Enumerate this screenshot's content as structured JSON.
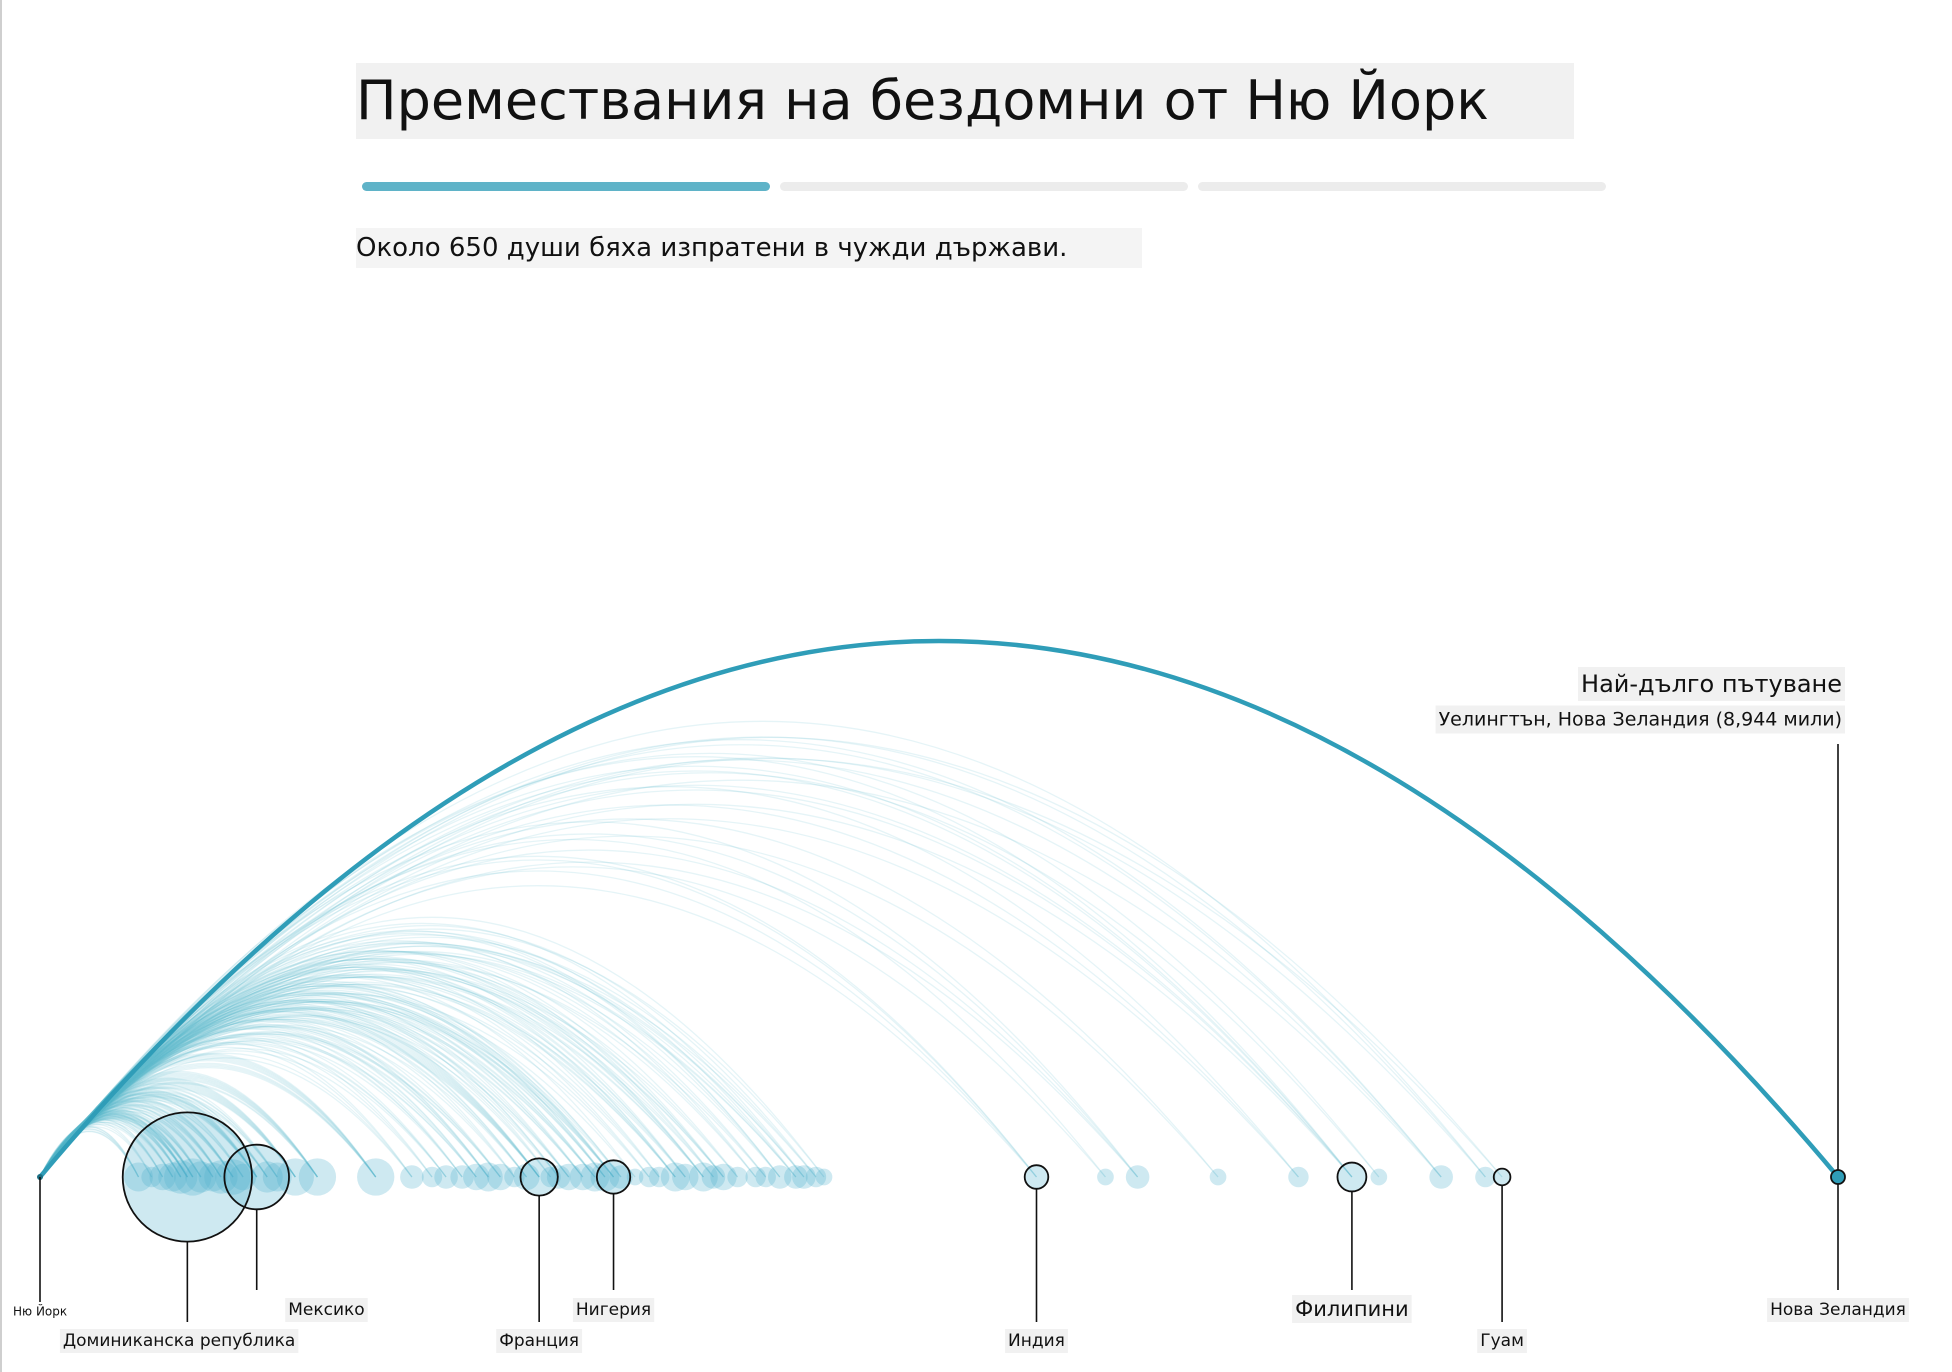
{
  "header": {
    "title": "Премествания на бездомни от Ню Йорк",
    "subtitle": "Около 650 души бяха изпратени в чужди държави.",
    "steps": [
      {
        "state": "active"
      },
      {
        "state": "inactive"
      },
      {
        "state": "inactive"
      }
    ]
  },
  "chart_data": {
    "type": "arc",
    "origin": {
      "name": "Ню Йорк",
      "distance": 0
    },
    "xlim": [
      0,
      8944
    ],
    "highlight": {
      "heading": "Най-дълго пътуване",
      "detail": "Уелингтън, Нова Зеландия (8,944 мили)",
      "distance": 8944
    },
    "labeled_destinations": [
      {
        "name": "Доминиканска република",
        "distance": 733,
        "count": 120,
        "row": "lower"
      },
      {
        "name": "Мексико",
        "distance": 1078,
        "count": 30,
        "row": "upper"
      },
      {
        "name": "Франция",
        "distance": 2483,
        "count": 10,
        "row": "lower"
      },
      {
        "name": "Нигерия",
        "distance": 2853,
        "count": 8,
        "row": "upper"
      },
      {
        "name": "Индия",
        "distance": 4957,
        "count": 4,
        "row": "lower"
      },
      {
        "name": "Филипини",
        "distance": 6526,
        "count": 6,
        "row": "upper"
      },
      {
        "name": "Гуам",
        "distance": 7273,
        "count": 2,
        "row": "lower"
      },
      {
        "name": "Нова Зеландия",
        "distance": 8944,
        "count": 1,
        "row": "upper"
      }
    ],
    "other_destinations": [
      {
        "distance": 490,
        "count": 6
      },
      {
        "distance": 555,
        "count": 3
      },
      {
        "distance": 610,
        "count": 5
      },
      {
        "distance": 660,
        "count": 6
      },
      {
        "distance": 700,
        "count": 8
      },
      {
        "distance": 760,
        "count": 10
      },
      {
        "distance": 800,
        "count": 7
      },
      {
        "distance": 860,
        "count": 6
      },
      {
        "distance": 900,
        "count": 8
      },
      {
        "distance": 960,
        "count": 9
      },
      {
        "distance": 1010,
        "count": 5
      },
      {
        "distance": 1130,
        "count": 7
      },
      {
        "distance": 1180,
        "count": 6
      },
      {
        "distance": 1270,
        "count": 10
      },
      {
        "distance": 1380,
        "count": 10
      },
      {
        "distance": 1670,
        "count": 10
      },
      {
        "distance": 1850,
        "count": 4
      },
      {
        "distance": 1950,
        "count": 3
      },
      {
        "distance": 2020,
        "count": 4
      },
      {
        "distance": 2100,
        "count": 4
      },
      {
        "distance": 2170,
        "count": 5
      },
      {
        "distance": 2230,
        "count": 6
      },
      {
        "distance": 2290,
        "count": 5
      },
      {
        "distance": 2360,
        "count": 3
      },
      {
        "distance": 2420,
        "count": 5
      },
      {
        "distance": 2540,
        "count": 3
      },
      {
        "distance": 2580,
        "count": 4
      },
      {
        "distance": 2630,
        "count": 5
      },
      {
        "distance": 2700,
        "count": 5
      },
      {
        "distance": 2760,
        "count": 6
      },
      {
        "distance": 2810,
        "count": 6
      },
      {
        "distance": 2890,
        "count": 4
      },
      {
        "distance": 2960,
        "count": 2
      },
      {
        "distance": 3030,
        "count": 3
      },
      {
        "distance": 3080,
        "count": 3
      },
      {
        "distance": 3160,
        "count": 6
      },
      {
        "distance": 3210,
        "count": 5
      },
      {
        "distance": 3300,
        "count": 6
      },
      {
        "distance": 3350,
        "count": 4
      },
      {
        "distance": 3400,
        "count": 5
      },
      {
        "distance": 3470,
        "count": 3
      },
      {
        "distance": 3560,
        "count": 3
      },
      {
        "distance": 3610,
        "count": 3
      },
      {
        "distance": 3680,
        "count": 4
      },
      {
        "distance": 3760,
        "count": 4
      },
      {
        "distance": 3800,
        "count": 4
      },
      {
        "distance": 3860,
        "count": 3
      },
      {
        "distance": 3900,
        "count": 2
      },
      {
        "distance": 5300,
        "count": 2
      },
      {
        "distance": 5460,
        "count": 4
      },
      {
        "distance": 5860,
        "count": 2
      },
      {
        "distance": 6260,
        "count": 3
      },
      {
        "distance": 6660,
        "count": 2
      },
      {
        "distance": 6970,
        "count": 4
      },
      {
        "distance": 7190,
        "count": 3
      }
    ]
  }
}
